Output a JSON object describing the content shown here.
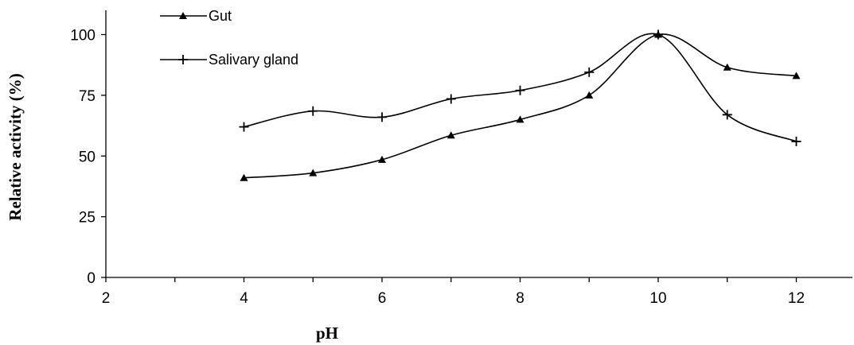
{
  "chart_data": {
    "type": "line",
    "title": "",
    "xlabel": "pH",
    "ylabel": "Relative activity (%)",
    "xlim": [
      2,
      13
    ],
    "ylim": [
      0,
      110
    ],
    "xticks": [
      2,
      4,
      6,
      8,
      10,
      12
    ],
    "yticks": [
      0,
      25,
      50,
      75,
      100
    ],
    "grid": false,
    "legend_position": "top-left",
    "smooth": true,
    "series": [
      {
        "name": "Gut",
        "marker": "triangle",
        "color": "#000000",
        "x": [
          4,
          5,
          6,
          7,
          8,
          9,
          10,
          11,
          12
        ],
        "y": [
          41,
          43,
          48.5,
          58.5,
          65,
          75,
          100,
          86.5,
          83
        ]
      },
      {
        "name": "Salivary gland",
        "marker": "plus",
        "color": "#000000",
        "x": [
          4,
          5,
          6,
          7,
          8,
          9,
          10,
          11,
          12
        ],
        "y": [
          62,
          68.5,
          66,
          73.5,
          77,
          84.5,
          100,
          67,
          56
        ]
      }
    ]
  }
}
